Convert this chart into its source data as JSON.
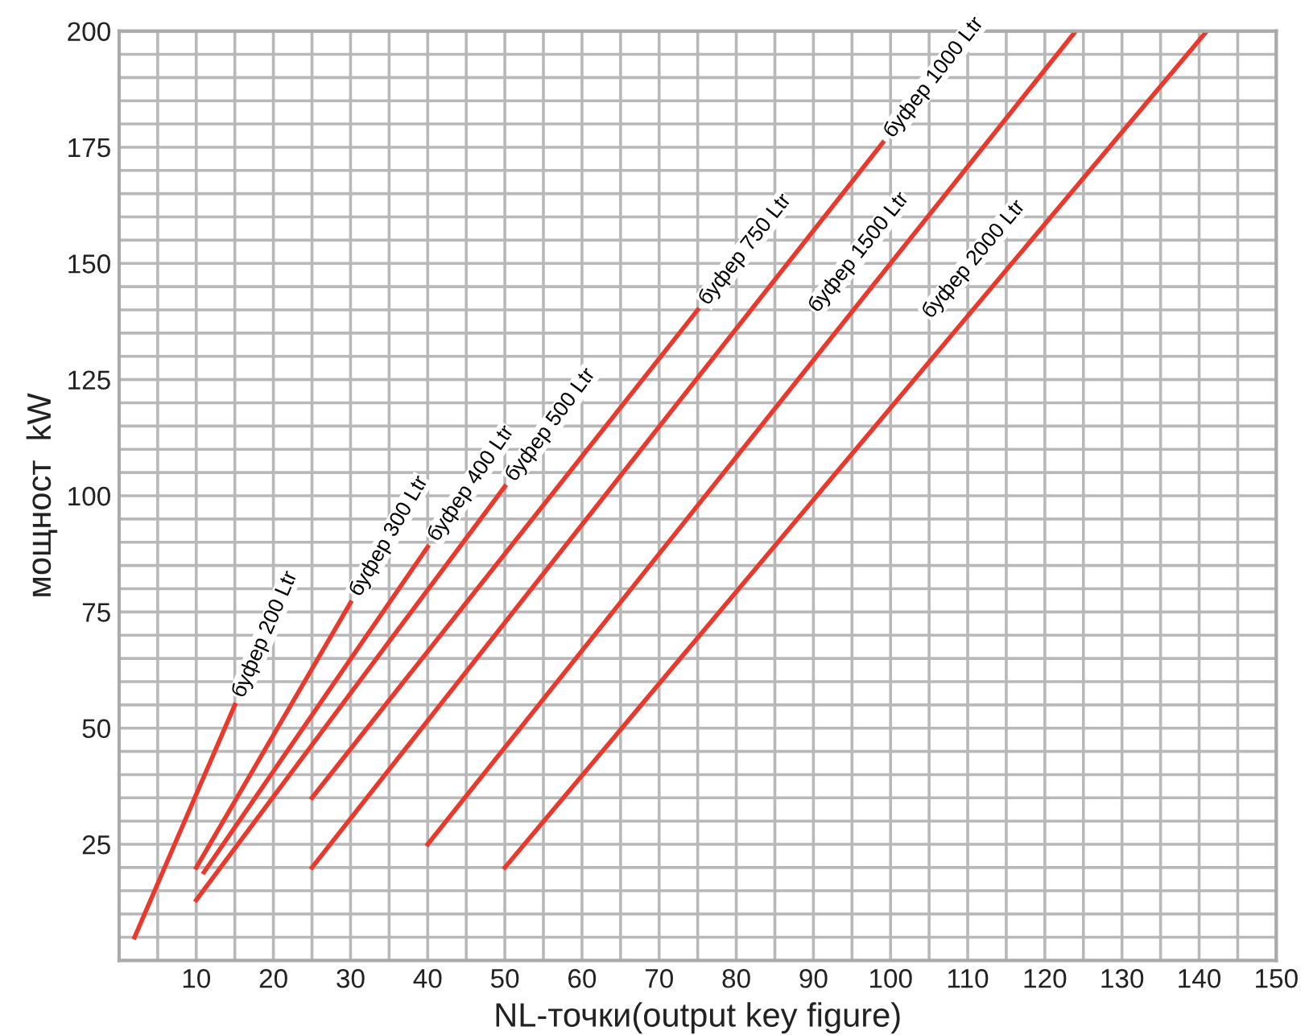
{
  "chart_data": {
    "type": "line",
    "xlabel": "NL-точки(output key figure)",
    "ylabel": "мощност  kW",
    "xlim": [
      0,
      150
    ],
    "ylim": [
      0,
      200
    ],
    "xticks": [
      {
        "value": 5,
        "label": null
      },
      10,
      {
        "value": 15,
        "label": null
      },
      20,
      {
        "value": 25,
        "label": null
      },
      30,
      {
        "value": 35,
        "label": null
      },
      40,
      {
        "value": 45,
        "label": null
      },
      50,
      {
        "value": 55,
        "label": null
      },
      60,
      {
        "value": 65,
        "label": null
      },
      70,
      {
        "value": 75,
        "label": null
      },
      80,
      {
        "value": 85,
        "label": null
      },
      90,
      {
        "value": 95,
        "label": null
      },
      100,
      {
        "value": 105,
        "label": null
      },
      110,
      {
        "value": 115,
        "label": null
      },
      120,
      {
        "value": 125,
        "label": null
      },
      130,
      {
        "value": 135,
        "label": null
      },
      140,
      {
        "value": 145,
        "label": null
      },
      150
    ],
    "yticks": [
      {
        "value": 5,
        "label": null
      },
      {
        "value": 10,
        "label": null
      },
      {
        "value": 15,
        "label": null
      },
      {
        "value": 20,
        "label": null
      },
      25,
      {
        "value": 30,
        "label": null
      },
      {
        "value": 35,
        "label": null
      },
      {
        "value": 40,
        "label": null
      },
      {
        "value": 45,
        "label": null
      },
      50,
      {
        "value": 55,
        "label": null
      },
      {
        "value": 60,
        "label": null
      },
      {
        "value": 65,
        "label": null
      },
      {
        "value": 70,
        "label": null
      },
      75,
      {
        "value": 80,
        "label": null
      },
      {
        "value": 85,
        "label": null
      },
      {
        "value": 90,
        "label": null
      },
      {
        "value": 95,
        "label": null
      },
      100,
      {
        "value": 105,
        "label": null
      },
      {
        "value": 110,
        "label": null
      },
      {
        "value": 115,
        "label": null
      },
      {
        "value": 120,
        "label": null
      },
      125,
      {
        "value": 130,
        "label": null
      },
      {
        "value": 135,
        "label": null
      },
      {
        "value": 140,
        "label": null
      },
      {
        "value": 145,
        "label": null
      },
      150,
      {
        "value": 155,
        "label": null
      },
      {
        "value": 160,
        "label": null
      },
      {
        "value": 165,
        "label": null
      },
      {
        "value": 170,
        "label": null
      },
      175,
      {
        "value": 180,
        "label": null
      },
      {
        "value": 185,
        "label": null
      },
      {
        "value": 190,
        "label": null
      },
      {
        "value": 195,
        "label": null
      },
      200
    ],
    "grid": true,
    "line_style": "solid",
    "marker": "none",
    "series": [
      {
        "name": "буфер 200 Ltr",
        "color": "#e8392c",
        "x": [
          2,
          15
        ],
        "values": [
          5,
          55
        ]
      },
      {
        "name": "буфер 300 Ltr",
        "color": "#e8392c",
        "x": [
          10,
          30
        ],
        "values": [
          20,
          77
        ]
      },
      {
        "name": "буфер 400 Ltr",
        "color": "#e8392c",
        "x": [
          11,
          40
        ],
        "values": [
          19,
          89
        ]
      },
      {
        "name": "буфер 500 Ltr",
        "color": "#e8392c",
        "x": [
          10,
          50
        ],
        "values": [
          13,
          102
        ]
      },
      {
        "name": "буфер 750 Ltr",
        "color": "#e8392c",
        "x": [
          25,
          75
        ],
        "values": [
          35,
          140
        ]
      },
      {
        "name": "буфер 1000 Ltr",
        "color": "#e8392c",
        "x": [
          25,
          99
        ],
        "values": [
          20,
          176
        ]
      },
      {
        "name": "буфер 1500 Ltr",
        "color": "#e8392c",
        "x": [
          40,
          124
        ],
        "values": [
          25,
          200
        ]
      },
      {
        "name": "буфер 2000 Ltr",
        "color": "#e8392c",
        "x": [
          50,
          141
        ],
        "values": [
          20,
          200
        ]
      }
    ]
  }
}
